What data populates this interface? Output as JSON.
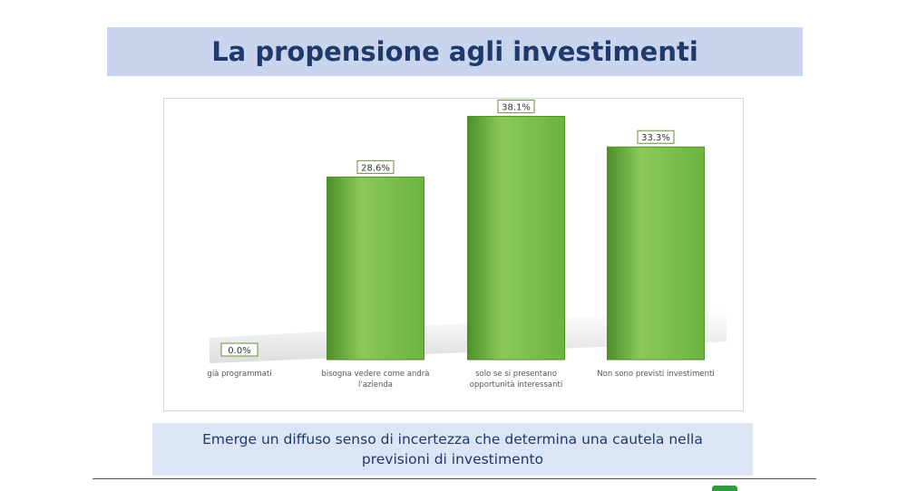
{
  "header": {
    "title": "La propensione agli investimenti"
  },
  "footer": {
    "note": "Emerge un diffuso senso di incertezza che determina una cautela nella previsioni di investimento"
  },
  "colors": {
    "bar_fill": "#6cb33f",
    "bar_light": "#8bc95a",
    "bar_dark": "#4e8f2a",
    "label_border": "#6a8f3a",
    "axis_text": "#555555"
  },
  "chart_data": {
    "type": "bar",
    "categories": [
      "già programmati",
      "bisogna vedere come andrà l'azienda",
      "solo se si presentano opportunità interessanti",
      "Non sono previsti investimenti"
    ],
    "category_lines": [
      [
        "già programmati"
      ],
      [
        "bisogna vedere come andrà",
        "l'azienda"
      ],
      [
        "solo se si presentano",
        "opportunità interessanti"
      ],
      [
        "Non sono previsti investimenti"
      ]
    ],
    "values": [
      0.0,
      28.6,
      38.1,
      33.3
    ],
    "data_labels": [
      "0.0%",
      "28.6%",
      "38.1%",
      "33.3%"
    ],
    "ylim": [
      0,
      40
    ],
    "grid": false,
    "legend": "none"
  }
}
